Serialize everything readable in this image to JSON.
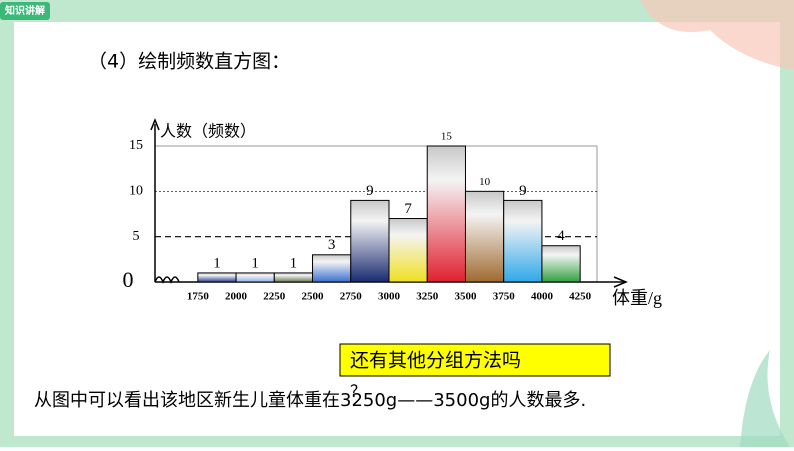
{
  "header": {
    "badge": "知识讲解",
    "heading": "（4）绘制频数直方图："
  },
  "chart_data": {
    "type": "histogram",
    "ylabel": "人数（频数）",
    "xlabel": "体重/g",
    "bins": [
      1750,
      2000,
      2250,
      2500,
      2750,
      3000,
      3250,
      3500,
      3750,
      4000,
      4250
    ],
    "values": [
      1,
      1,
      1,
      3,
      9,
      7,
      15,
      10,
      9,
      4
    ],
    "colors": [
      "#2b3f8f",
      "#8fb0e8",
      "#6a7a50",
      "#3a6fd0",
      "#1a2a70",
      "#f0e020",
      "#e02030",
      "#a06a30",
      "#30a8e8",
      "#30a040"
    ],
    "xlim": [
      1470,
      4360
    ],
    "ylim": [
      0,
      15
    ],
    "xticks": [
      1750,
      2000,
      2250,
      2500,
      2750,
      3000,
      3250,
      3500,
      3750,
      4000,
      4250
    ],
    "yticks": [
      0,
      5,
      10,
      15
    ],
    "grid": true
  },
  "callout": {
    "text": "还有其他分组方法吗",
    "mark": "？"
  },
  "conclusion": "从图中可以看出该地区新生儿童体重在3250g——3500g的人数最多."
}
